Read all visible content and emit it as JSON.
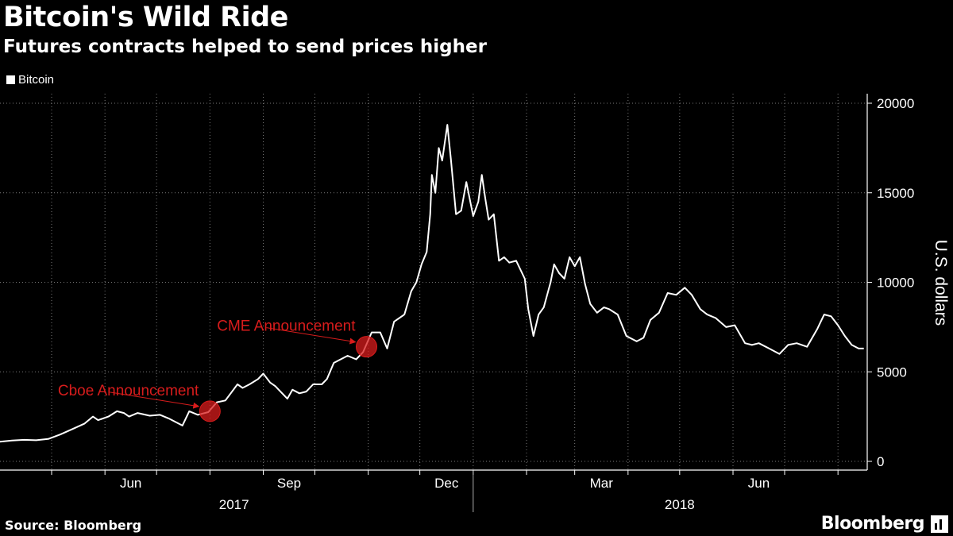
{
  "header": {
    "title": "Bitcoin's Wild Ride",
    "subtitle": "Futures contracts helped to send prices higher"
  },
  "footer": {
    "source": "Source: Bloomberg",
    "brand": "Bloomberg"
  },
  "colors": {
    "background": "#000000",
    "line": "#ffffff",
    "annotation": "#d81c1c",
    "grid": "#777777"
  },
  "chart_data": {
    "type": "line",
    "title": "Bitcoin's Wild Ride",
    "subtitle": "Futures contracts helped to send prices higher",
    "ylabel": "U.S. dollars",
    "xlabel": "",
    "ylim": [
      0,
      20000
    ],
    "xlim": [
      "2017-04-01",
      "2018-08-18"
    ],
    "y_ticks": [
      0,
      5000,
      10000,
      15000,
      20000
    ],
    "y_axis_side": "right",
    "x_month_ticks": [
      {
        "date": "2017-05-01",
        "label": ""
      },
      {
        "date": "2017-06-01",
        "label": "Jun"
      },
      {
        "date": "2017-07-01",
        "label": ""
      },
      {
        "date": "2017-08-01",
        "label": ""
      },
      {
        "date": "2017-09-01",
        "label": "Sep"
      },
      {
        "date": "2017-10-01",
        "label": ""
      },
      {
        "date": "2017-11-01",
        "label": ""
      },
      {
        "date": "2017-12-01",
        "label": "Dec"
      },
      {
        "date": "2018-01-01",
        "label": ""
      },
      {
        "date": "2018-02-01",
        "label": ""
      },
      {
        "date": "2018-03-01",
        "label": "Mar"
      },
      {
        "date": "2018-04-01",
        "label": ""
      },
      {
        "date": "2018-05-01",
        "label": ""
      },
      {
        "date": "2018-06-01",
        "label": "Jun"
      },
      {
        "date": "2018-07-01",
        "label": ""
      },
      {
        "date": "2018-08-01",
        "label": ""
      }
    ],
    "year_labels": [
      {
        "date": "2017-08-15",
        "label": "2017"
      },
      {
        "date": "2018-05-01",
        "label": "2018"
      }
    ],
    "year_divider": "2018-01-01",
    "grid": true,
    "legend": {
      "position": "top-left",
      "entries": [
        "Bitcoin"
      ]
    },
    "series": [
      {
        "name": "Bitcoin",
        "x": [
          "2017-04-01",
          "2017-04-08",
          "2017-04-15",
          "2017-04-22",
          "2017-04-29",
          "2017-05-06",
          "2017-05-13",
          "2017-05-20",
          "2017-05-25",
          "2017-05-28",
          "2017-06-03",
          "2017-06-08",
          "2017-06-12",
          "2017-06-15",
          "2017-06-20",
          "2017-06-27",
          "2017-07-03",
          "2017-07-08",
          "2017-07-16",
          "2017-07-20",
          "2017-07-25",
          "2017-07-31",
          "2017-08-05",
          "2017-08-10",
          "2017-08-17",
          "2017-08-20",
          "2017-08-24",
          "2017-08-29",
          "2017-09-01",
          "2017-09-05",
          "2017-09-08",
          "2017-09-12",
          "2017-09-15",
          "2017-09-18",
          "2017-09-22",
          "2017-09-26",
          "2017-09-30",
          "2017-10-05",
          "2017-10-08",
          "2017-10-12",
          "2017-10-16",
          "2017-10-20",
          "2017-10-25",
          "2017-10-29",
          "2017-11-03",
          "2017-11-08",
          "2017-11-12",
          "2017-11-16",
          "2017-11-22",
          "2017-11-26",
          "2017-11-29",
          "2017-12-02",
          "2017-12-05",
          "2017-12-07",
          "2017-12-08",
          "2017-12-10",
          "2017-12-12",
          "2017-12-14",
          "2017-12-17",
          "2017-12-19",
          "2017-12-22",
          "2017-12-25",
          "2017-12-28",
          "2018-01-01",
          "2018-01-04",
          "2018-01-06",
          "2018-01-08",
          "2018-01-10",
          "2018-01-13",
          "2018-01-16",
          "2018-01-19",
          "2018-01-22",
          "2018-01-26",
          "2018-01-31",
          "2018-02-02",
          "2018-02-05",
          "2018-02-08",
          "2018-02-11",
          "2018-02-15",
          "2018-02-17",
          "2018-02-20",
          "2018-02-23",
          "2018-02-26",
          "2018-03-01",
          "2018-03-04",
          "2018-03-07",
          "2018-03-10",
          "2018-03-14",
          "2018-03-18",
          "2018-03-21",
          "2018-03-26",
          "2018-03-31",
          "2018-04-06",
          "2018-04-10",
          "2018-04-14",
          "2018-04-19",
          "2018-04-24",
          "2018-04-29",
          "2018-05-04",
          "2018-05-08",
          "2018-05-13",
          "2018-05-17",
          "2018-05-22",
          "2018-05-28",
          "2018-06-02",
          "2018-06-08",
          "2018-06-12",
          "2018-06-16",
          "2018-06-22",
          "2018-06-28",
          "2018-07-03",
          "2018-07-08",
          "2018-07-14",
          "2018-07-20",
          "2018-07-24",
          "2018-07-28",
          "2018-08-01",
          "2018-08-05",
          "2018-08-09",
          "2018-08-13",
          "2018-08-16"
        ],
        "y": [
          1100,
          1160,
          1200,
          1180,
          1250,
          1500,
          1800,
          2100,
          2500,
          2300,
          2500,
          2800,
          2700,
          2500,
          2700,
          2550,
          2600,
          2400,
          2000,
          2800,
          2600,
          2750,
          3300,
          3400,
          4300,
          4100,
          4300,
          4600,
          4900,
          4400,
          4200,
          3800,
          3500,
          4000,
          3800,
          3900,
          4300,
          4300,
          4600,
          5500,
          5700,
          5900,
          5700,
          6100,
          7200,
          7200,
          6300,
          7800,
          8200,
          9500,
          10000,
          11000,
          11700,
          13800,
          16000,
          15000,
          17500,
          16800,
          18800,
          16900,
          13800,
          14000,
          15600,
          13700,
          14500,
          16000,
          14700,
          13500,
          13800,
          11200,
          11400,
          11100,
          11200,
          10200,
          8500,
          7000,
          8200,
          8600,
          10000,
          11000,
          10500,
          10200,
          11400,
          10900,
          11400,
          9900,
          8800,
          8300,
          8600,
          8500,
          8200,
          7000,
          6700,
          6900,
          7900,
          8300,
          9400,
          9300,
          9700,
          9300,
          8500,
          8200,
          8000,
          7500,
          7600,
          6600,
          6500,
          6600,
          6300,
          6000,
          6500,
          6600,
          6400,
          7400,
          8200,
          8100,
          7600,
          7000,
          6500,
          6300,
          6300
        ]
      }
    ],
    "annotations": [
      {
        "text": "Cboe Announcement",
        "date": "2017-08-01",
        "value": 2800
      },
      {
        "text": "CME Announcement",
        "date": "2017-10-31",
        "value": 6400
      }
    ]
  }
}
